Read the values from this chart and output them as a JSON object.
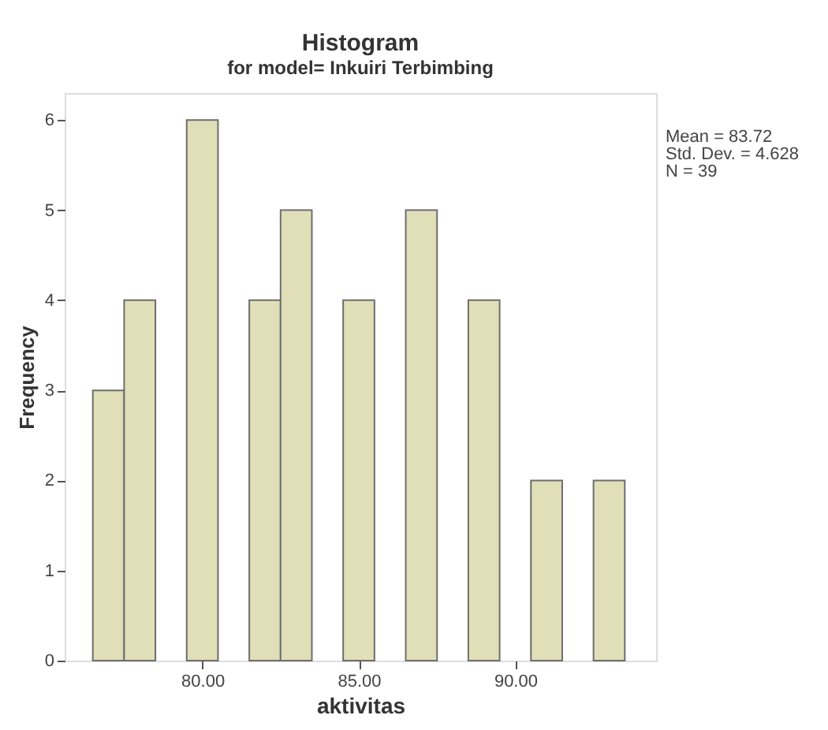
{
  "chart_data": {
    "type": "histogram",
    "title": "Histogram",
    "subtitle": "for model= Inkuiri Terbimbing",
    "xlabel": "aktivitas",
    "ylabel": "Frequency",
    "bins": [
      76.5,
      77.5,
      78.5,
      79.5,
      80.5,
      81.5,
      82.5,
      83.5,
      84.5,
      85.5,
      86.5,
      87.5,
      88.5,
      89.5,
      90.5,
      91.5,
      92.5,
      93.5
    ],
    "values": [
      3,
      4,
      0,
      6,
      0,
      4,
      5,
      0,
      4,
      0,
      5,
      0,
      4,
      0,
      2,
      0,
      2
    ],
    "color": "#e0dfb8",
    "xlim": [
      75.6,
      94.5
    ],
    "xticks": [
      {
        "value": 80,
        "label": "80.00"
      },
      {
        "value": 85,
        "label": "85.00"
      },
      {
        "value": 90,
        "label": "90.00"
      }
    ],
    "ylim": [
      0,
      6.3
    ],
    "yticks": [
      0,
      1,
      2,
      3,
      4,
      5,
      6
    ],
    "grid": false,
    "annotations": [
      "Mean = 83.72",
      "Std. Dev. = 4.628",
      "N = 39"
    ]
  }
}
